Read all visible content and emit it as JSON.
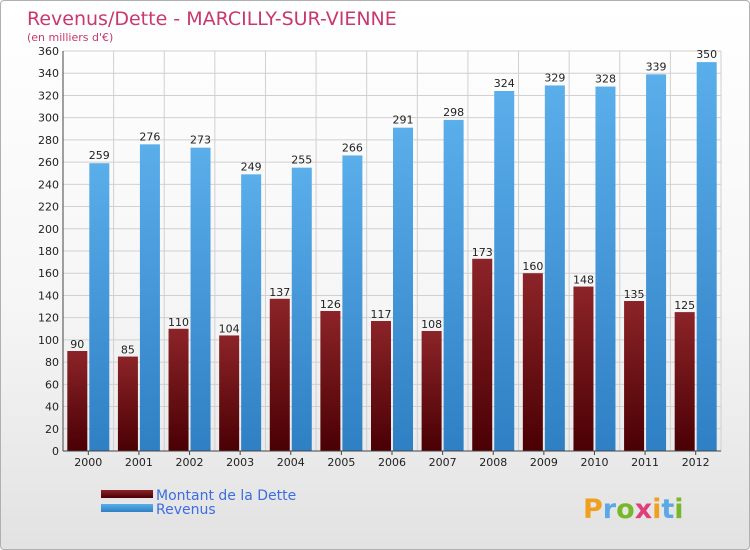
{
  "chart_data": {
    "type": "bar",
    "title": "Revenus/Dette - MARCILLY-SUR-VIENNE",
    "subtitle": "(en milliers d'€)",
    "categories": [
      "2000",
      "2001",
      "2002",
      "2003",
      "2004",
      "2005",
      "2006",
      "2007",
      "2008",
      "2009",
      "2010",
      "2011",
      "2012"
    ],
    "series": [
      {
        "name": "Montant de la Dette",
        "color": "#6e0e10",
        "values": [
          90,
          85,
          110,
          104,
          137,
          126,
          117,
          108,
          173,
          160,
          148,
          135,
          125
        ]
      },
      {
        "name": "Revenus",
        "color": "#4ea3e6",
        "values": [
          259,
          276,
          273,
          249,
          255,
          266,
          291,
          298,
          324,
          329,
          328,
          339,
          350
        ]
      }
    ],
    "ylim": [
      0,
      360
    ],
    "ytick_step": 20,
    "grid": true,
    "legend": "bottom-left"
  },
  "brand": {
    "letters": [
      "P",
      "r",
      "o",
      "x",
      "i",
      "t",
      "i"
    ],
    "colors": [
      "#f0a020",
      "#5aa8e6",
      "#77b82a",
      "#e0407a",
      "#f0a020",
      "#5aa8e6",
      "#77b82a"
    ]
  }
}
